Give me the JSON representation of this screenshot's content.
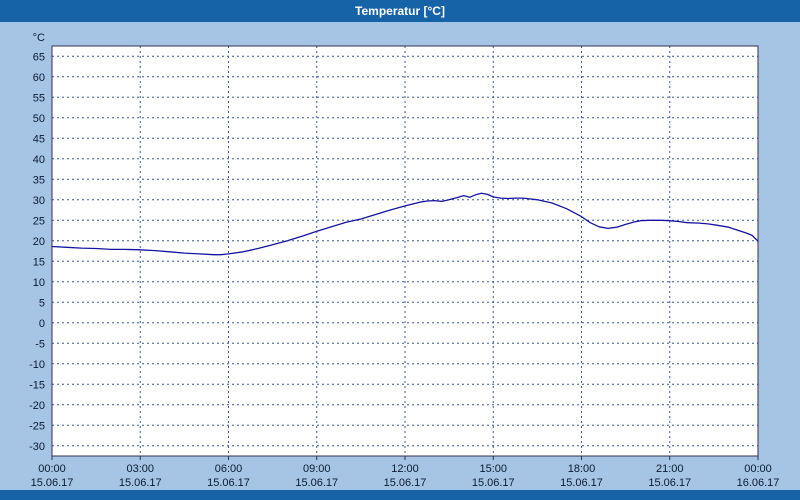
{
  "window": {
    "title": "Temperatur [°C]"
  },
  "colors": {
    "titlebar_bg": "#1664a7",
    "window_bg": "#a6c5e4",
    "plot_bg": "#ffffff",
    "grid": "#3a5a9a",
    "border": "#303050",
    "line": "#1414a0",
    "text": "#0a1a33"
  },
  "chart_data": {
    "type": "line",
    "title": "Temperatur [°C]",
    "xlabel": "",
    "ylabel": "°C",
    "xlim": [
      0,
      24
    ],
    "ylim": [
      -32.5,
      67.5
    ],
    "y_labels_from": -30,
    "y_labels_to": 65,
    "y_step": 5,
    "grid": "dashed",
    "legend": "none",
    "x_grid_hours": [
      3,
      6,
      9,
      12,
      15,
      18,
      21
    ],
    "x_tick_hours": [
      0,
      3,
      6,
      9,
      12,
      15,
      18,
      21,
      24
    ],
    "x_ticks": [
      {
        "time": "00:00",
        "date": "15.06.17"
      },
      {
        "time": "03:00",
        "date": "15.06.17"
      },
      {
        "time": "06:00",
        "date": "15.06.17"
      },
      {
        "time": "09:00",
        "date": "15.06.17"
      },
      {
        "time": "12:00",
        "date": "15.06.17"
      },
      {
        "time": "15:00",
        "date": "15.06.17"
      },
      {
        "time": "18:00",
        "date": "15.06.17"
      },
      {
        "time": "21:00",
        "date": "15.06.17"
      },
      {
        "time": "00:00",
        "date": "16.06.17"
      }
    ],
    "series": [
      {
        "name": "Temperatur",
        "unit": "°C",
        "points": [
          [
            0,
            18.6
          ],
          [
            0.5,
            18.4
          ],
          [
            1,
            18.2
          ],
          [
            1.5,
            18.1
          ],
          [
            2,
            17.9
          ],
          [
            2.5,
            17.9
          ],
          [
            3,
            17.8
          ],
          [
            3.5,
            17.6
          ],
          [
            4,
            17.3
          ],
          [
            4.5,
            17.0
          ],
          [
            5,
            16.8
          ],
          [
            5.5,
            16.6
          ],
          [
            5.75,
            16.6
          ],
          [
            6,
            16.8
          ],
          [
            6.5,
            17.3
          ],
          [
            7,
            18.1
          ],
          [
            7.5,
            19.0
          ],
          [
            8,
            20.0
          ],
          [
            8.5,
            21.1
          ],
          [
            9,
            22.3
          ],
          [
            9.5,
            23.4
          ],
          [
            10,
            24.5
          ],
          [
            10.5,
            25.3
          ],
          [
            11,
            26.4
          ],
          [
            11.5,
            27.5
          ],
          [
            12,
            28.5
          ],
          [
            12.5,
            29.4
          ],
          [
            12.75,
            29.7
          ],
          [
            13,
            29.8
          ],
          [
            13.25,
            29.6
          ],
          [
            13.5,
            30.0
          ],
          [
            13.75,
            30.5
          ],
          [
            14,
            31.0
          ],
          [
            14.2,
            30.6
          ],
          [
            14.4,
            31.2
          ],
          [
            14.6,
            31.6
          ],
          [
            14.8,
            31.3
          ],
          [
            15,
            30.7
          ],
          [
            15.25,
            30.4
          ],
          [
            15.5,
            30.3
          ],
          [
            15.75,
            30.4
          ],
          [
            16,
            30.4
          ],
          [
            16.25,
            30.2
          ],
          [
            16.5,
            30.0
          ],
          [
            17,
            29.2
          ],
          [
            17.5,
            27.8
          ],
          [
            18,
            25.9
          ],
          [
            18.3,
            24.4
          ],
          [
            18.6,
            23.4
          ],
          [
            18.9,
            23.0
          ],
          [
            19.2,
            23.3
          ],
          [
            19.5,
            24.0
          ],
          [
            19.8,
            24.6
          ],
          [
            20,
            24.9
          ],
          [
            20.3,
            25.0
          ],
          [
            20.7,
            25.0
          ],
          [
            21,
            24.9
          ],
          [
            21.3,
            24.7
          ],
          [
            21.6,
            24.4
          ],
          [
            22,
            24.3
          ],
          [
            22.3,
            24.1
          ],
          [
            22.6,
            23.8
          ],
          [
            23,
            23.3
          ],
          [
            23.3,
            22.6
          ],
          [
            23.6,
            21.9
          ],
          [
            23.8,
            21.3
          ],
          [
            24,
            19.9
          ]
        ]
      }
    ]
  }
}
